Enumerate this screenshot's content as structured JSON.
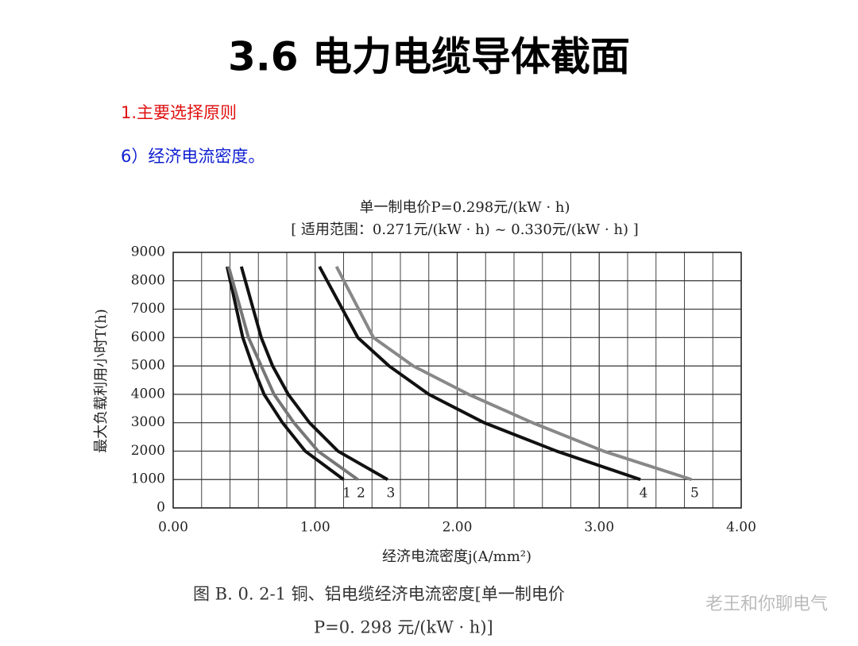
{
  "slide_title": "3.6 电力电缆导体截面",
  "section": "1.主要选择原则",
  "item": "6）经济电流密度。",
  "caption": [
    "图 B. 0. 2-1   铜、铝电缆经济电流密度[单一制电价",
    "P=0. 298 元/(kW · h)]"
  ],
  "watermark": "老王和你聊电气",
  "chart_data": {
    "type": "line",
    "title": "单一制电价P=0.298元/(kW · h)",
    "subtitle": "[ 适用范围：0.271元/(kW · h) ~ 0.330元/(kW · h) ]",
    "xlabel": "经济电流密度j(A/mm²)",
    "ylabel": "最大负载利用小时T(h)",
    "xlim": [
      0,
      4
    ],
    "ylim": [
      0,
      9000
    ],
    "xticks": [
      {
        "value": 0,
        "label": "0.00"
      },
      {
        "value": 1,
        "label": "1.00"
      },
      {
        "value": 2,
        "label": "2.00"
      },
      {
        "value": 3,
        "label": "3.00"
      },
      {
        "value": 4,
        "label": "4.00"
      }
    ],
    "yticks": [
      0,
      1000,
      2000,
      3000,
      4000,
      5000,
      6000,
      7000,
      8000,
      9000
    ],
    "grid": true,
    "series": [
      {
        "name": "1",
        "color": "#111111",
        "x": [
          0.38,
          0.49,
          0.56,
          0.64,
          0.77,
          0.93,
          1.2
        ],
        "values": [
          8500,
          6000,
          5000,
          4000,
          3000,
          2000,
          1000
        ]
      },
      {
        "name": "2",
        "color": "#777777",
        "x": [
          0.39,
          0.53,
          0.62,
          0.71,
          0.85,
          1.02,
          1.3
        ],
        "values": [
          8500,
          6000,
          5000,
          4000,
          3000,
          2000,
          1000
        ]
      },
      {
        "name": "3",
        "color": "#111111",
        "x": [
          0.48,
          0.62,
          0.7,
          0.81,
          0.96,
          1.16,
          1.51
        ],
        "values": [
          8500,
          6000,
          5000,
          4000,
          3000,
          2000,
          1000
        ]
      },
      {
        "name": "4",
        "color": "#111111",
        "x": [
          1.03,
          1.3,
          1.52,
          1.8,
          2.19,
          2.7,
          3.29
        ],
        "values": [
          8500,
          6000,
          5000,
          4000,
          3000,
          2000,
          1000
        ]
      },
      {
        "name": "5",
        "color": "#888888",
        "x": [
          1.15,
          1.41,
          1.69,
          2.08,
          2.53,
          3.03,
          3.65
        ],
        "values": [
          8500,
          6000,
          5000,
          4000,
          3000,
          2000,
          1000
        ]
      }
    ]
  }
}
